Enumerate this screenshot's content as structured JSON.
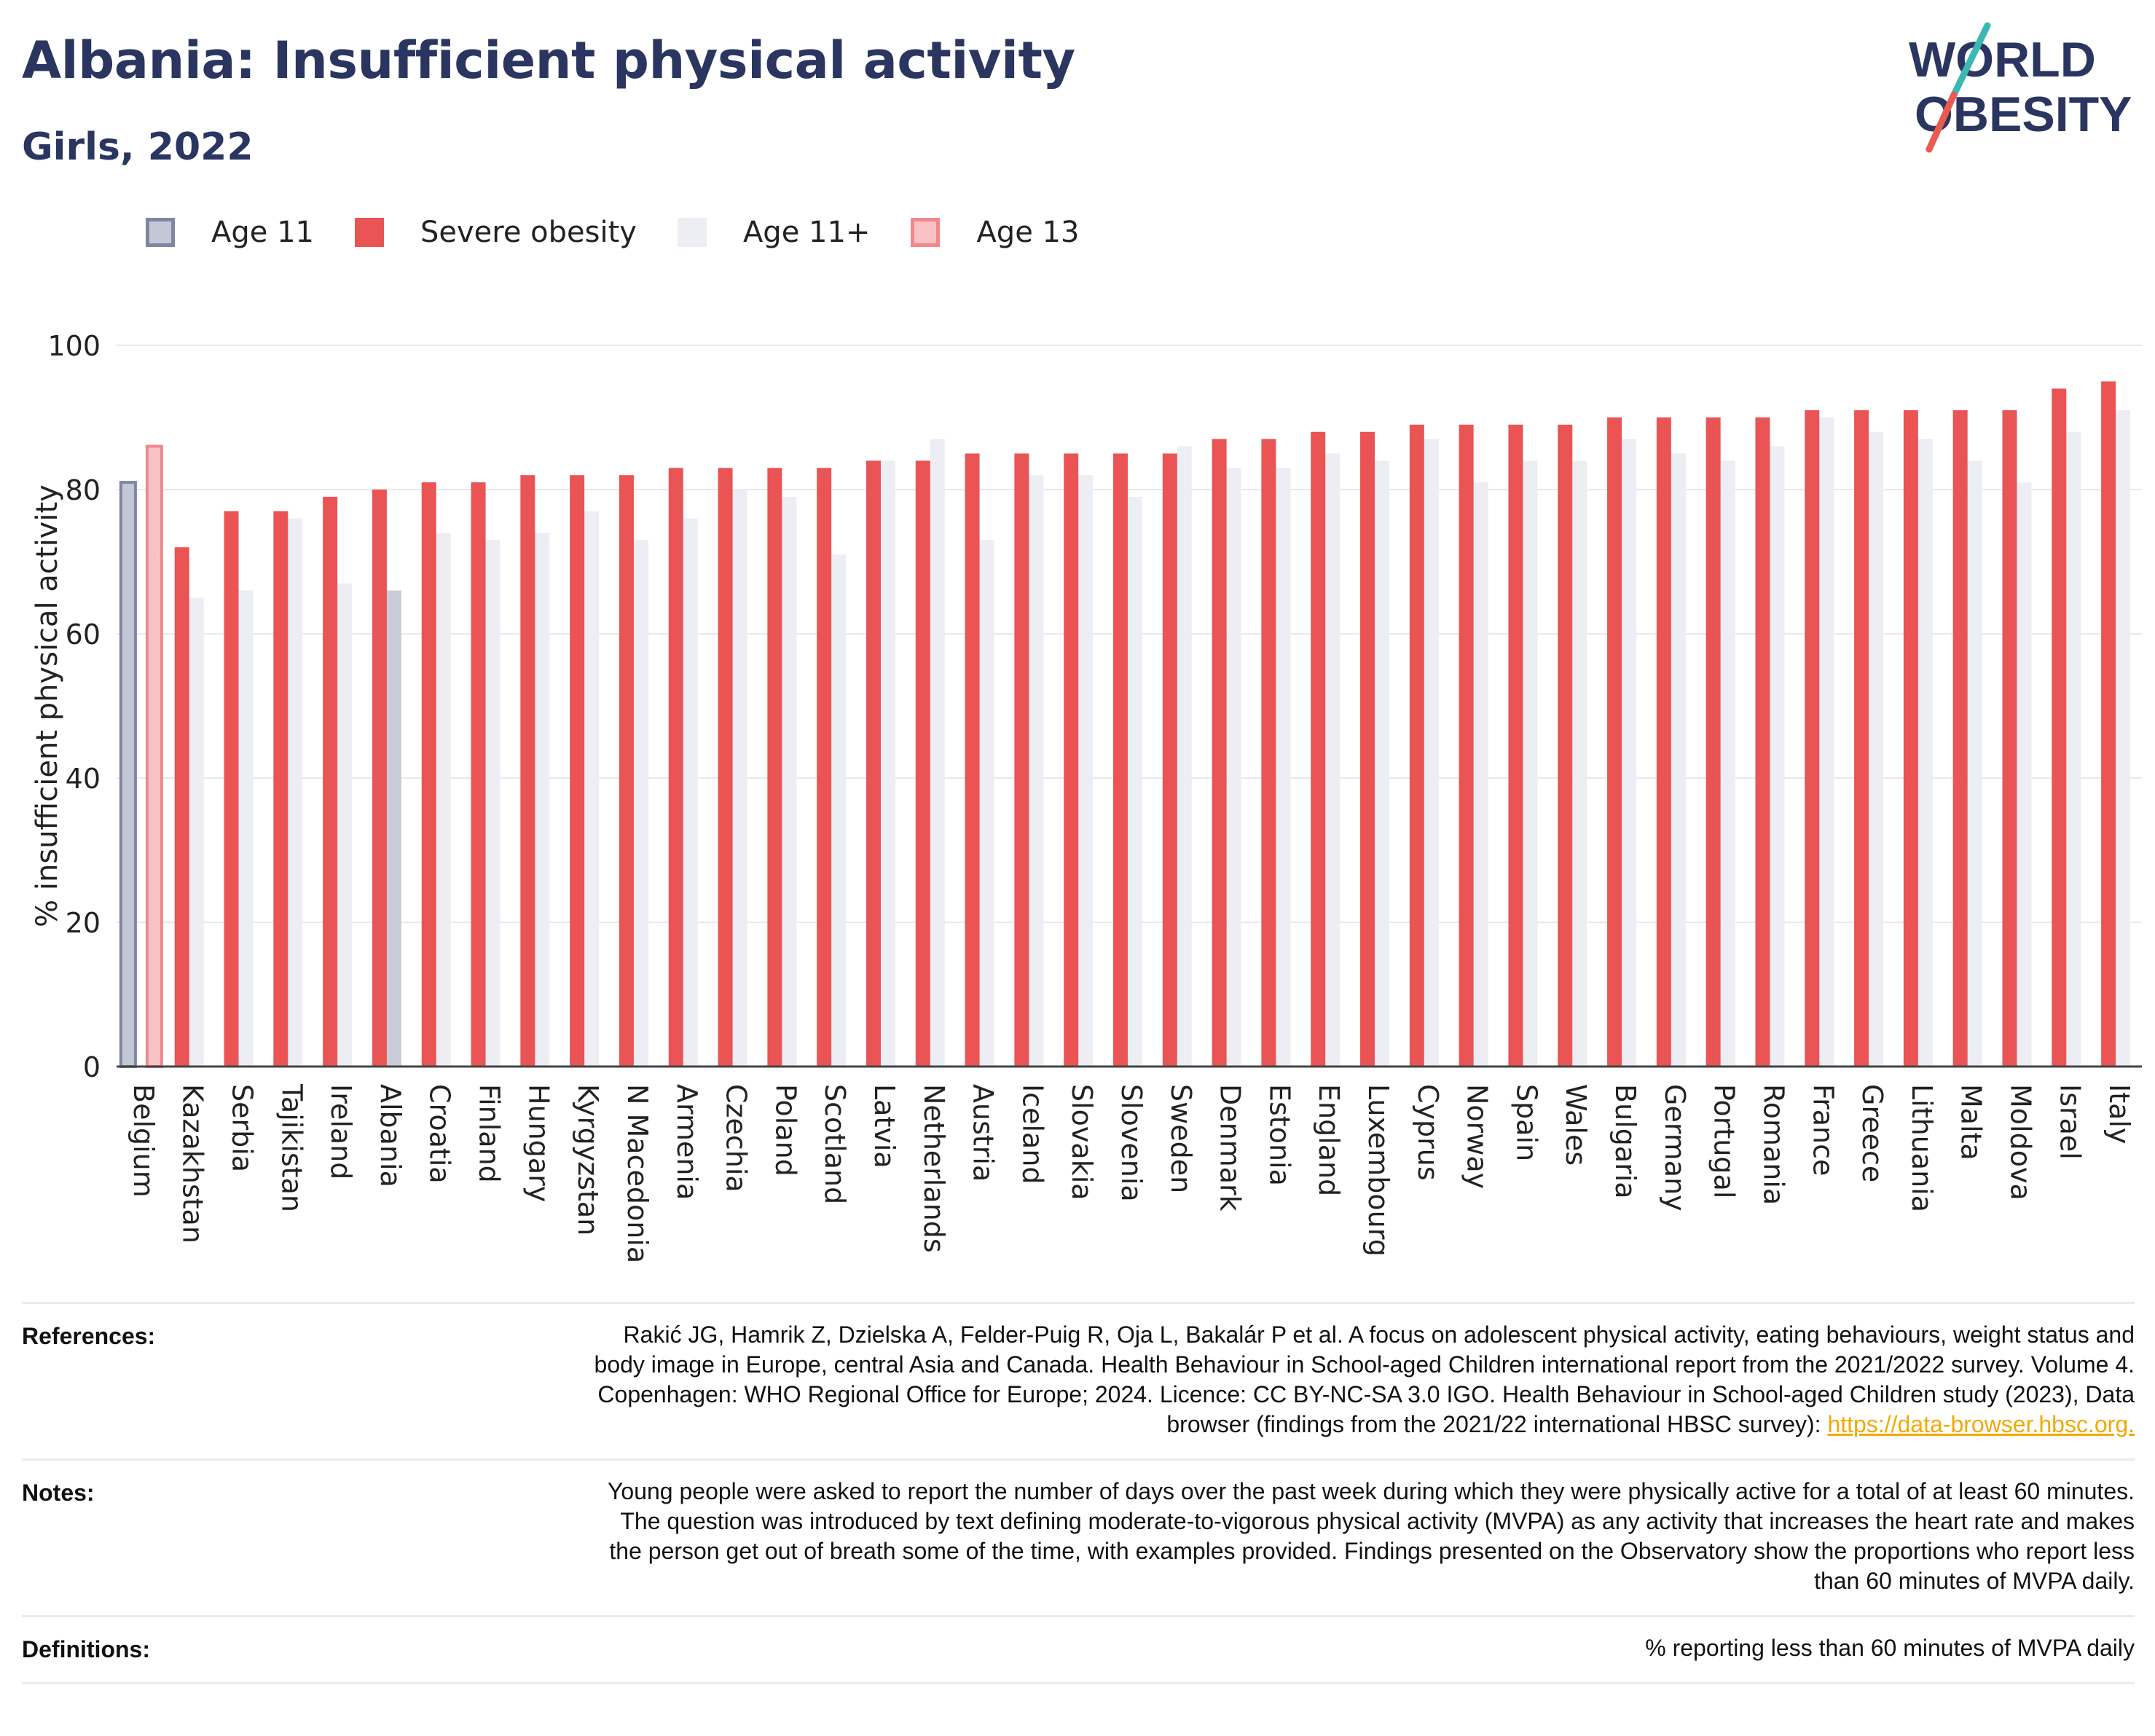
{
  "header": {
    "title": "Albania: Insufficient physical activity",
    "subtitle": "Girls, 2022"
  },
  "logo": {
    "line1": "WORLD",
    "line2": "OBESITY"
  },
  "legend": [
    {
      "label": "Age 11",
      "color": "#c3c7d6",
      "border": "#7d86a3"
    },
    {
      "label": "Severe obesity",
      "color": "#ea5455",
      "border": "#ea5455"
    },
    {
      "label": "Age 11+",
      "color": "#eceef4",
      "border": "#eceef4"
    },
    {
      "label": "Age 13",
      "color": "#f8c2c4",
      "border": "#f0898c"
    }
  ],
  "chart_data": {
    "type": "bar",
    "ylabel": "% insufficient physical activity",
    "ylim": [
      0,
      100
    ],
    "yticks": [
      0,
      20,
      40,
      60,
      80,
      100
    ],
    "grid": true,
    "categories": [
      "Belgium",
      "Kazakhstan",
      "Serbia",
      "Tajikistan",
      "Ireland",
      "Albania",
      "Croatia",
      "Finland",
      "Hungary",
      "Kyrgyzstan",
      "N Macedonia",
      "Armenia",
      "Czechia",
      "Poland",
      "Scotland",
      "Latvia",
      "Netherlands",
      "Austria",
      "Iceland",
      "Slovakia",
      "Slovenia",
      "Sweden",
      "Denmark",
      "Estonia",
      "England",
      "Luxembourg",
      "Cyprus",
      "Norway",
      "Spain",
      "Wales",
      "Bulgaria",
      "Germany",
      "Portugal",
      "Romania",
      "France",
      "Greece",
      "Lithuania",
      "Malta",
      "Moldova",
      "Israel",
      "Italy"
    ],
    "series": [
      {
        "name": "Age 11",
        "color": "#c3c7d6",
        "values": [
          81,
          null,
          null,
          null,
          null,
          null,
          null,
          null,
          null,
          null,
          null,
          null,
          null,
          null,
          null,
          null,
          null,
          null,
          null,
          null,
          null,
          null,
          null,
          null,
          null,
          null,
          null,
          null,
          null,
          null,
          null,
          null,
          null,
          null,
          null,
          null,
          null,
          null,
          null,
          null,
          null
        ]
      },
      {
        "name": "Age 13",
        "color": "#f8c2c4",
        "values": [
          86,
          null,
          null,
          null,
          null,
          null,
          null,
          null,
          null,
          null,
          null,
          null,
          null,
          null,
          null,
          null,
          null,
          null,
          null,
          null,
          null,
          null,
          null,
          null,
          null,
          null,
          null,
          null,
          null,
          null,
          null,
          null,
          null,
          null,
          null,
          null,
          null,
          null,
          null,
          null,
          null
        ]
      },
      {
        "name": "Severe obesity",
        "color": "#ea5455",
        "values": [
          null,
          72,
          77,
          77,
          79,
          80,
          81,
          81,
          82,
          82,
          82,
          83,
          83,
          83,
          83,
          84,
          84,
          85,
          85,
          85,
          85,
          85,
          87,
          87,
          88,
          88,
          89,
          89,
          89,
          89,
          90,
          90,
          90,
          90,
          91,
          91,
          91,
          91,
          91,
          94,
          95
        ]
      },
      {
        "name": "Age 11+",
        "color": "#eceef4",
        "values": [
          null,
          65,
          66,
          76,
          67,
          66,
          74,
          73,
          74,
          77,
          73,
          76,
          80,
          79,
          71,
          84,
          87,
          73,
          82,
          82,
          79,
          86,
          83,
          83,
          85,
          84,
          87,
          81,
          84,
          84,
          87,
          85,
          84,
          86,
          90,
          88,
          87,
          84,
          81,
          88,
          91
        ]
      }
    ]
  },
  "footer": {
    "references_label": "References:",
    "references_text": "Rakić JG, Hamrik Z, Dzielska A, Felder-Puig R, Oja L, Bakalár P et al. A focus on adolescent physical activity, eating behaviours, weight status and body image in Europe, central Asia and Canada. Health Behaviour in School-aged Children international report from the 2021/2022 survey. Volume 4. Copenhagen: WHO Regional Office for Europe; 2024. Licence: CC BY-NC-SA 3.0 IGO. Health Behaviour in School-aged Children study (2023), Data browser (findings from the 2021/22 international HBSC survey): ",
    "references_link": "https://data-browser.hbsc.org.",
    "notes_label": "Notes:",
    "notes_text": "Young people were asked to report the number of days over the past week during which they were physically active for a total of at least 60 minutes. The question was introduced by text defining moderate-to-vigorous physical activity (MVPA) as any activity that increases the heart rate and makes the person get out of breath some of the time, with examples provided. Findings presented on the Observatory show the proportions who report less than 60 minutes of MVPA daily.",
    "definitions_label": "Definitions:",
    "definitions_text": "% reporting less than 60 minutes of MVPA daily"
  }
}
